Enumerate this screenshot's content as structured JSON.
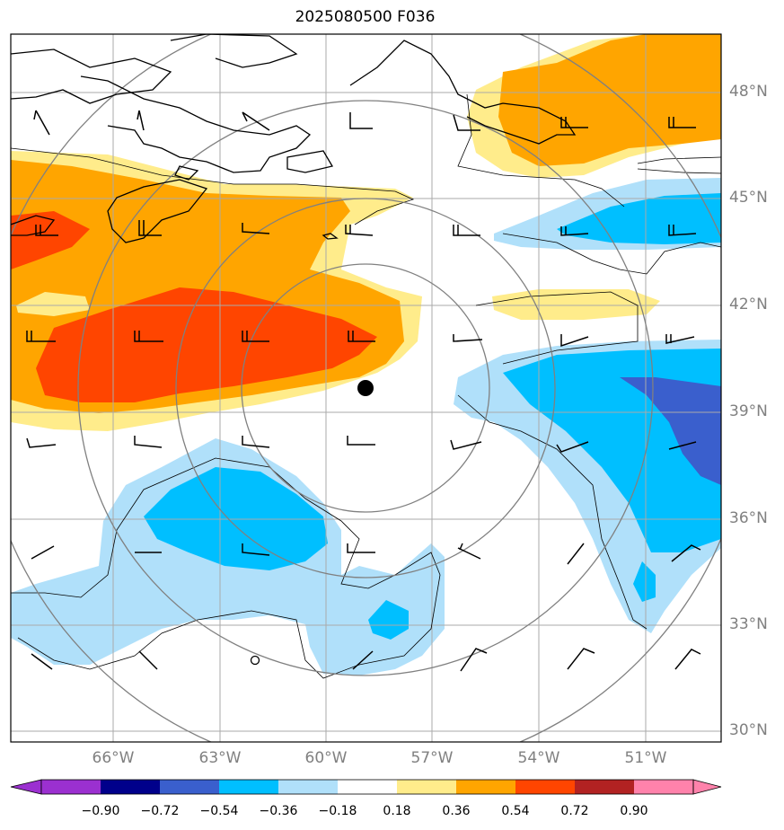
{
  "title": "2025080500 F036",
  "lat_labels": [
    "48°N",
    "45°N",
    "42°N",
    "39°N",
    "36°N",
    "33°N",
    "30°N"
  ],
  "lon_labels": [
    "66°W",
    "63°W",
    "60°W",
    "57°W",
    "54°W",
    "51°W"
  ],
  "colorbar": {
    "tick_labels": [
      "−0.90",
      "−0.72",
      "−0.54",
      "−0.36",
      "−0.18",
      "0.18",
      "0.36",
      "0.54",
      "0.72",
      "0.90"
    ],
    "colors": [
      "#9b30d0",
      "#00008b",
      "#3a5fcd",
      "#00bfff",
      "#b0e0fa",
      "#ffffff",
      "#ffec8b",
      "#ffa500",
      "#ff4500",
      "#b22222",
      "#ff82ab"
    ]
  },
  "map": {
    "storm_center_marker": "filled-circle",
    "small_marker": "open-circle",
    "colors": {
      "light_yellow": "#ffec8b",
      "orange": "#ffa500",
      "red_orange": "#ff4500",
      "light_blue": "#b0e0fa",
      "sky_blue": "#00bfff",
      "royal_blue": "#3a5fcd",
      "grid": "#aaaaaa",
      "range_rings": "#808080"
    }
  }
}
